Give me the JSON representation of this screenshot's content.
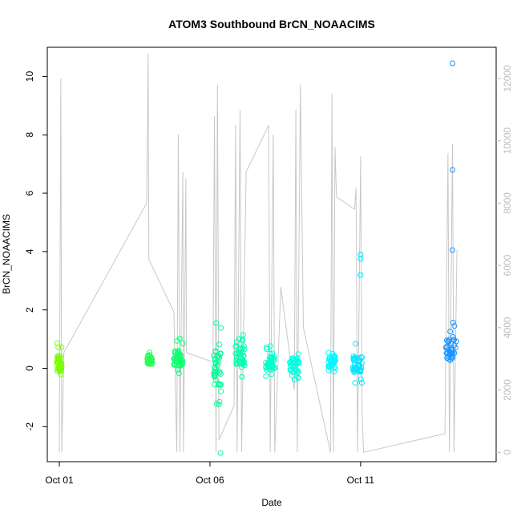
{
  "chart_data": {
    "type": "scatter",
    "title": "ATOM3 Southbound BrCN_NOAACIMS",
    "xlabel": "Date",
    "ylabel": "BrCN_NOAACIMS",
    "x_ticks": [
      "Oct 01",
      "Oct 06",
      "Oct 11"
    ],
    "x_tick_values": [
      1,
      6,
      11
    ],
    "xlim": [
      0.6,
      15.5
    ],
    "ylim": [
      -3.2,
      11.0
    ],
    "y_ticks": [
      -2,
      0,
      2,
      4,
      6,
      8,
      10
    ],
    "y2_ticks": [
      0,
      2000,
      4000,
      6000,
      8000,
      10000,
      12000
    ],
    "y2lim": [
      -300,
      13000
    ],
    "grid": false,
    "legend": "none",
    "secondary_series_color": "#c8c8c8",
    "point_color_gradient": [
      "#7cfc00",
      "#00ff7f",
      "#00ffff",
      "#1e90ff"
    ],
    "point_groups": [
      {
        "x_center": 1.0,
        "spread": 0.08,
        "y_min": -0.4,
        "y_max": 0.9
      },
      {
        "x_center": 4.0,
        "spread": 0.08,
        "y_min": 0.1,
        "y_max": 0.6
      },
      {
        "x_center": 4.95,
        "spread": 0.15,
        "y_min": -0.2,
        "y_max": 1.2
      },
      {
        "x_center": 6.25,
        "spread": 0.12,
        "y_min": -1.5,
        "y_max": 1.6
      },
      {
        "x_center": 7.0,
        "spread": 0.15,
        "y_min": -0.3,
        "y_max": 1.5
      },
      {
        "x_center": 8.0,
        "spread": 0.15,
        "y_min": -0.3,
        "y_max": 0.8
      },
      {
        "x_center": 8.8,
        "spread": 0.15,
        "y_min": -0.4,
        "y_max": 0.6
      },
      {
        "x_center": 10.05,
        "spread": 0.12,
        "y_min": -0.2,
        "y_max": 0.8
      },
      {
        "x_center": 10.9,
        "spread": 0.15,
        "y_min": -0.5,
        "y_max": 0.9
      },
      {
        "x_center": 14.0,
        "spread": 0.18,
        "y_min": 0.0,
        "y_max": 1.8
      }
    ],
    "outlier_points": [
      {
        "x": 14.05,
        "y": 10.45
      },
      {
        "x": 14.05,
        "y": 6.8
      },
      {
        "x": 14.05,
        "y": 4.05
      },
      {
        "x": 11.0,
        "y": 3.9
      },
      {
        "x": 11.0,
        "y": 3.75
      },
      {
        "x": 11.0,
        "y": 3.2
      },
      {
        "x": 6.35,
        "y": -2.9
      }
    ],
    "altitude_track": [
      [
        1.0,
        0
      ],
      [
        1.05,
        12000
      ],
      [
        1.08,
        0
      ],
      [
        1.15,
        3200
      ],
      [
        3.9,
        8000
      ],
      [
        3.95,
        12800
      ],
      [
        3.97,
        6200
      ],
      [
        4.8,
        4500
      ],
      [
        4.9,
        0
      ],
      [
        4.95,
        10200
      ],
      [
        5.0,
        0
      ],
      [
        5.1,
        9000
      ],
      [
        5.12,
        0
      ],
      [
        5.2,
        8800
      ],
      [
        5.22,
        3200
      ],
      [
        6.1,
        2900
      ],
      [
        6.15,
        10800
      ],
      [
        6.2,
        0
      ],
      [
        6.25,
        11800
      ],
      [
        6.3,
        400
      ],
      [
        6.8,
        1500
      ],
      [
        6.85,
        10500
      ],
      [
        6.9,
        0
      ],
      [
        7.0,
        11000
      ],
      [
        7.05,
        0
      ],
      [
        7.2,
        9000
      ],
      [
        7.95,
        10500
      ],
      [
        8.0,
        0
      ],
      [
        8.1,
        10200
      ],
      [
        8.15,
        0
      ],
      [
        8.35,
        5300
      ],
      [
        8.8,
        2000
      ],
      [
        8.85,
        11000
      ],
      [
        8.9,
        0
      ],
      [
        9.0,
        11800
      ],
      [
        9.1,
        4000
      ],
      [
        10.0,
        0
      ],
      [
        10.05,
        11500
      ],
      [
        10.1,
        0
      ],
      [
        10.15,
        9800
      ],
      [
        10.2,
        8200
      ],
      [
        10.8,
        7800
      ],
      [
        10.85,
        8500
      ],
      [
        10.9,
        0
      ],
      [
        11.0,
        9500
      ],
      [
        11.05,
        1200
      ],
      [
        11.1,
        0
      ],
      [
        13.8,
        600
      ],
      [
        13.9,
        9600
      ],
      [
        13.95,
        0
      ],
      [
        14.05,
        9900
      ],
      [
        14.1,
        0
      ],
      [
        14.2,
        6500
      ]
    ]
  }
}
